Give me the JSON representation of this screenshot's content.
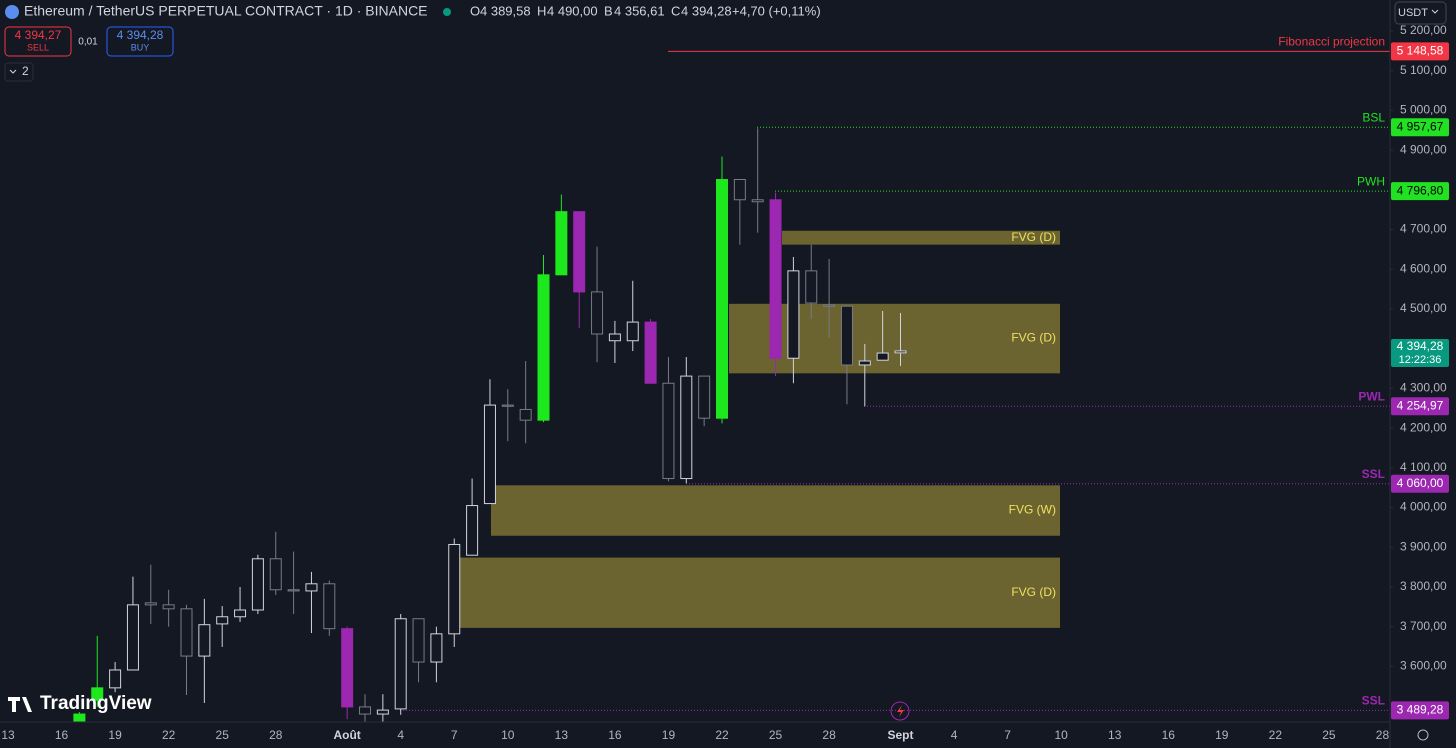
{
  "header": {
    "symbol": "Ethereum / TetherUS PERPETUAL CONTRACT · 1D · BINANCE",
    "ohlc": [
      {
        "key": "O",
        "value": "4 389,58"
      },
      {
        "key": "H",
        "value": "4 490,00"
      },
      {
        "key": "B",
        "value": "4 356,61"
      },
      {
        "key": "C",
        "value": "4 394,28"
      }
    ],
    "change": "+4,70 (+0,11%)",
    "sell": {
      "price": "4 394,27",
      "label": "SELL"
    },
    "spread": "0,01",
    "buy": {
      "price": "4 394,28",
      "label": "BUY"
    },
    "indicators": "2",
    "currency": "USDT",
    "logo": "TradingView"
  },
  "chart_data": {
    "type": "candlestick",
    "series": [
      {
        "name": "ETHUSDT",
        "open": [
          3460,
          3515,
          3546,
          3591,
          3760,
          3755,
          3745,
          3626,
          3707,
          3725,
          3742,
          3871,
          3793,
          3790,
          3808,
          3695,
          3498,
          3480,
          3493,
          3720,
          3611,
          3682,
          3880,
          4010,
          4258,
          4247,
          4220,
          4586,
          4745,
          4543,
          4420,
          4420,
          4467,
          4313,
          4073,
          4331,
          4225,
          4826,
          4775,
          4775,
          4376,
          4596,
          4510,
          4507,
          4359,
          4371,
          4389.58
        ],
        "high": [
          3485,
          3677,
          3611,
          3826,
          3856,
          3793,
          3755,
          3770,
          3752,
          3800,
          3881,
          3939,
          3889,
          3838,
          3816,
          3700,
          3530,
          3530,
          3732,
          3720,
          3700,
          3922,
          4073,
          4323,
          4298,
          4369,
          4636,
          4788,
          4745,
          4657,
          4470,
          4571,
          4475,
          4379,
          4379,
          4331,
          4884,
          4826,
          4955,
          4793,
          4631,
          4662,
          4626,
          4507,
          4412,
          4495,
          4490
        ],
        "low": [
          3440,
          3498,
          3535,
          3591,
          3707,
          3700,
          3528,
          3508,
          3649,
          3712,
          3732,
          3780,
          3732,
          3684,
          3677,
          3467,
          3430,
          3450,
          3478,
          3560,
          3560,
          3649,
          3879,
          4010,
          4167,
          4162,
          4215,
          4586,
          4452,
          4366,
          4364,
          4394,
          4313,
          4066,
          4061,
          4205,
          4212,
          4662,
          4692,
          4331,
          4313,
          4475,
          4427,
          4260,
          4255,
          4371,
          4356.61
        ],
        "close": [
          3480,
          3546,
          3591,
          3755,
          3755,
          3745,
          3626,
          3705,
          3725,
          3742,
          3871,
          3793,
          3790,
          3808,
          3695,
          3498,
          3480,
          3490,
          3720,
          3611,
          3682,
          3907,
          4005,
          4258,
          4255,
          4220,
          4586,
          4745,
          4543,
          4437,
          4437,
          4467,
          4313,
          4073,
          4331,
          4225,
          4826,
          4775,
          4770,
          4376,
          4596,
          4515,
          4507,
          4359,
          4369,
          4389,
          4394.28
        ],
        "colors": [
          "#1de81d",
          "#1de81d",
          null,
          null,
          null,
          null,
          null,
          null,
          null,
          null,
          null,
          null,
          null,
          null,
          null,
          "#9c27b0",
          null,
          null,
          null,
          null,
          null,
          null,
          null,
          null,
          null,
          null,
          "#1de81d",
          "#1de81d",
          "#9c27b0",
          null,
          null,
          null,
          "#9c27b0",
          null,
          null,
          null,
          "#1de81d",
          null,
          null,
          "#9c27b0",
          null,
          null,
          null,
          null,
          null,
          null,
          null
        ]
      }
    ],
    "up_color": "#d1d4dc",
    "down_color": "#787b86",
    "last_price": {
      "value": 4394.28,
      "label": "4 394,28",
      "timer": "12:22:36",
      "color": "#089981"
    },
    "levels": [
      {
        "name": "Fibonacci projection",
        "value": 5148.58,
        "label": "5 148,58",
        "color": "#f23645"
      },
      {
        "name": "BSL",
        "value": 4957.67,
        "label": "4 957,67",
        "color": "#22e022"
      },
      {
        "name": "PWH",
        "value": 4796.8,
        "label": "4 796,80",
        "color": "#22e022"
      },
      {
        "name": "PWL",
        "value": 4254.97,
        "label": "4 254,97",
        "color": "#9c27b0"
      },
      {
        "name": "SSL",
        "value": 4060.0,
        "label": "4 060,00",
        "color": "#9c27b0"
      },
      {
        "name": "SSL",
        "value": 3489.28,
        "label": "3 489,28",
        "color": "#9c27b0"
      }
    ],
    "zones": [
      {
        "name": "FVG (D)",
        "top": 4697,
        "bottom": 4662
      },
      {
        "name": "FVG (D)",
        "top": 4513,
        "bottom": 4338
      },
      {
        "name": "FVG (W)",
        "top": 4056,
        "bottom": 3929
      },
      {
        "name": "FVG (D)",
        "top": 3874,
        "bottom": 3697
      }
    ],
    "zone_color": "#7a7233",
    "ylim": [
      3460,
      5278
    ],
    "yticks": [
      {
        "value": 3600,
        "label": "3 600,00"
      },
      {
        "value": 3700,
        "label": "3 700,00"
      },
      {
        "value": 3800,
        "label": "3 800,00"
      },
      {
        "value": 3900,
        "label": "3 900,00"
      },
      {
        "value": 4000,
        "label": "4 000,00"
      },
      {
        "value": 4100,
        "label": "4 100,00"
      },
      {
        "value": 4200,
        "label": "4 200,00"
      },
      {
        "value": 4300,
        "label": "4 300,00"
      },
      {
        "value": 4400,
        "label": "4 400,00"
      },
      {
        "value": 4500,
        "label": "4 500,00"
      },
      {
        "value": 4600,
        "label": "4 600,00"
      },
      {
        "value": 4700,
        "label": "4 700,00"
      },
      {
        "value": 4800,
        "label": "4 800,00"
      },
      {
        "value": 4900,
        "label": "4 900,00"
      },
      {
        "value": 5000,
        "label": "5 000,00"
      },
      {
        "value": 5100,
        "label": "5 100,00"
      },
      {
        "value": 5200,
        "label": "5 200,00"
      }
    ],
    "xticks": [
      "13",
      "16",
      "19",
      "22",
      "25",
      "28",
      "Août",
      "4",
      "7",
      "10",
      "13",
      "16",
      "19",
      "22",
      "25",
      "28",
      "Sept",
      "4",
      "7",
      "10",
      "13",
      "16",
      "19",
      "22",
      "25",
      "28"
    ],
    "grid": false
  }
}
